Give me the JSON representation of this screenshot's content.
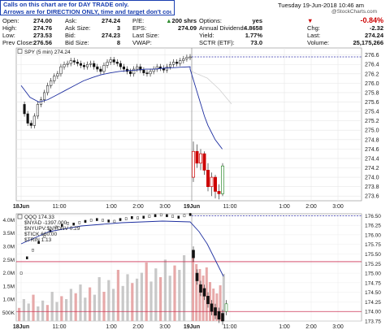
{
  "notice": {
    "line1": "Calls on this chart are for DAY TRADE only.",
    "line2": "Arrows are for DIRECTION ONLY, time and target don't count."
  },
  "header": {
    "datetime": "Tuesday 19-Jun-2018 10:46 am",
    "watermark": "@StockCharts.com",
    "col1": [
      {
        "label": "Open:",
        "value": "274.00"
      },
      {
        "label": "High:",
        "value": "274.76"
      },
      {
        "label": "Low:",
        "value": "273.53"
      },
      {
        "label": "Prev Close:",
        "value": "276.56"
      }
    ],
    "col2": [
      {
        "label": "Ask:",
        "value": "274.24"
      },
      {
        "label": "Ask Size:",
        "value": "3"
      },
      {
        "label": "Bid:",
        "value": "274.23"
      },
      {
        "label": "Bid Size:",
        "value": "8"
      }
    ],
    "col3": [
      {
        "label": "P/E:",
        "value": ""
      },
      {
        "label": "EPS:",
        "value": ""
      },
      {
        "label": "Last Size:",
        "value": "200 shrs"
      },
      {
        "label": "VWAP:",
        "value": "274.09"
      }
    ],
    "col4": [
      {
        "label": "Options:",
        "value": "yes"
      },
      {
        "label": "Annual Dividend:",
        "value": "4.8658"
      },
      {
        "label": "Yield:",
        "value": "1.77%"
      },
      {
        "label": "SCTR (ETF):",
        "value": "73.0"
      }
    ],
    "col5": [
      {
        "label": "",
        "value": "-0.84%"
      },
      {
        "label": "Chg:",
        "value": "-2.32"
      },
      {
        "label": "Last:",
        "value": "274.24"
      },
      {
        "label": "Volume:",
        "value": "25,175,266"
      }
    ],
    "down_color": "#cc0000"
  },
  "chart_data": [
    {
      "type": "candlestick",
      "title": "SPY (5 min) 274.24",
      "ylim": [
        273.5,
        276.75
      ],
      "yticks": [
        "273.6",
        "273.8",
        "274.0",
        "274.2",
        "274.4",
        "274.6",
        "274.8",
        "275.0",
        "275.2",
        "275.4",
        "275.6",
        "275.8",
        "276.0",
        "276.2",
        "276.4",
        "276.6"
      ],
      "xticks": [
        "18Jun",
        "11:00",
        "1:00",
        "2:00",
        "3:00",
        "19Jun",
        "11:00",
        "1:00",
        "2:00",
        "3:00"
      ],
      "day1_close_series": [
        275.55,
        275.35,
        275.15,
        275.1,
        275.3,
        275.55,
        275.65,
        275.8,
        275.95,
        276.05,
        276.15,
        276.2,
        276.35,
        276.4,
        276.42,
        276.48,
        276.45,
        276.42,
        276.38,
        276.35,
        276.4,
        276.42,
        276.35,
        276.3,
        276.25,
        276.38,
        276.45,
        276.5,
        276.45,
        276.42,
        276.35,
        276.3,
        276.25,
        276.2,
        276.3,
        276.35,
        276.28,
        276.22,
        276.2,
        276.25,
        276.3,
        276.35,
        276.32,
        276.28,
        276.35,
        276.4,
        276.45,
        276.42,
        276.48,
        276.52,
        276.55,
        276.56
      ],
      "day2_candles": [
        {
          "o": 274.0,
          "h": 274.76,
          "l": 273.9,
          "c": 274.55
        },
        {
          "o": 274.55,
          "h": 274.7,
          "l": 274.2,
          "c": 274.3
        },
        {
          "o": 274.3,
          "h": 274.6,
          "l": 274.15,
          "c": 274.5
        },
        {
          "o": 274.5,
          "h": 274.55,
          "l": 274.05,
          "c": 274.15
        },
        {
          "o": 274.15,
          "h": 274.3,
          "l": 273.7,
          "c": 273.8
        },
        {
          "o": 273.8,
          "h": 274.1,
          "l": 273.6,
          "c": 274.0
        },
        {
          "o": 274.0,
          "h": 274.05,
          "l": 273.55,
          "c": 273.7
        },
        {
          "o": 273.7,
          "h": 273.85,
          "l": 273.53,
          "c": 273.65
        },
        {
          "o": 273.65,
          "h": 274.3,
          "l": 273.6,
          "c": 274.24
        }
      ],
      "ma_series": [
        276.3,
        276.05,
        275.8,
        275.55,
        275.3,
        275.1,
        274.95,
        274.8,
        274.7,
        274.6
      ],
      "prev_close_line": 276.56,
      "colors": {
        "up": "#2e8b2e",
        "down": "#cc0000",
        "ma": "#1e2fa0",
        "prev": "#3333aa"
      }
    },
    {
      "type": "candlestick",
      "title": "QQQ 174.33",
      "legend": [
        "$NYAD -1397.000",
        "$NYUPV:$NYDNV 0.29",
        "$TICK 660.00",
        "$TRIN 1.13"
      ],
      "ylim": [
        173.75,
        176.55
      ],
      "yticks": [
        "173.75",
        "174.00",
        "174.25",
        "174.50",
        "174.75",
        "175.00",
        "175.25",
        "175.50",
        "175.75",
        "176.00",
        "176.25",
        "176.50"
      ],
      "vol_ticks": [
        "500K",
        "1.0M",
        "1.5M",
        "2.0M",
        "2.5M",
        "3.0M",
        "3.5M",
        "4.0M"
      ],
      "xticks": [
        "18Jun",
        "11:00",
        "1:00",
        "2:00",
        "3:00",
        "19Jun",
        "11:00",
        "1:00",
        "2:00",
        "3:00"
      ],
      "ref_lines": [
        175.3,
        174.0
      ],
      "prev_close_line": 176.5,
      "colors": {
        "ref": "#cc3355",
        "vol_up": "#c8c8c8",
        "vol_down": "#e7a9a9"
      }
    }
  ]
}
